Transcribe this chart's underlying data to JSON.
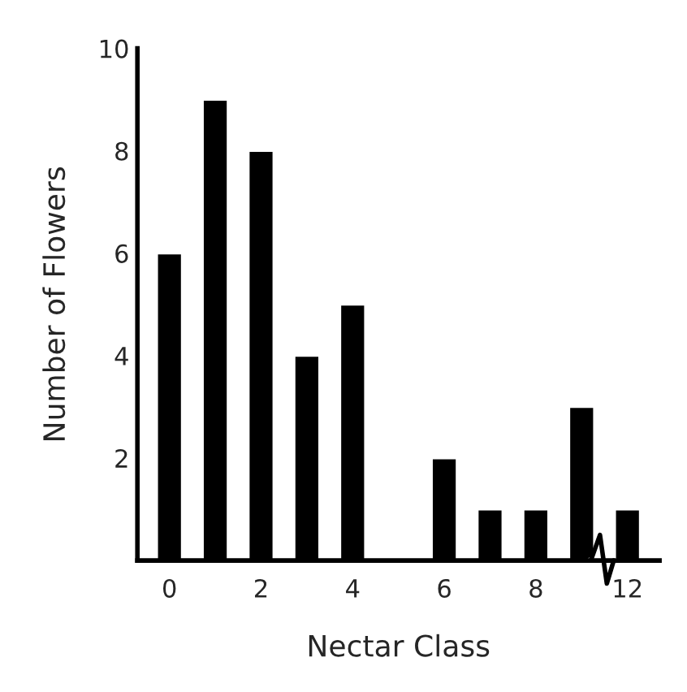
{
  "chart_data": {
    "type": "bar",
    "xlabel": "Nectar Class",
    "ylabel": "Number of Flowers",
    "categories": [
      "0",
      null,
      "2",
      null,
      "4",
      null,
      "6",
      null,
      "8",
      null,
      "12"
    ],
    "values": [
      6,
      9,
      8,
      4,
      5,
      null,
      2,
      1,
      1,
      3,
      1
    ],
    "color": "#000000",
    "ylim": [
      0,
      10
    ],
    "yticks": [
      2,
      4,
      6,
      8,
      10
    ],
    "grid": false
  }
}
